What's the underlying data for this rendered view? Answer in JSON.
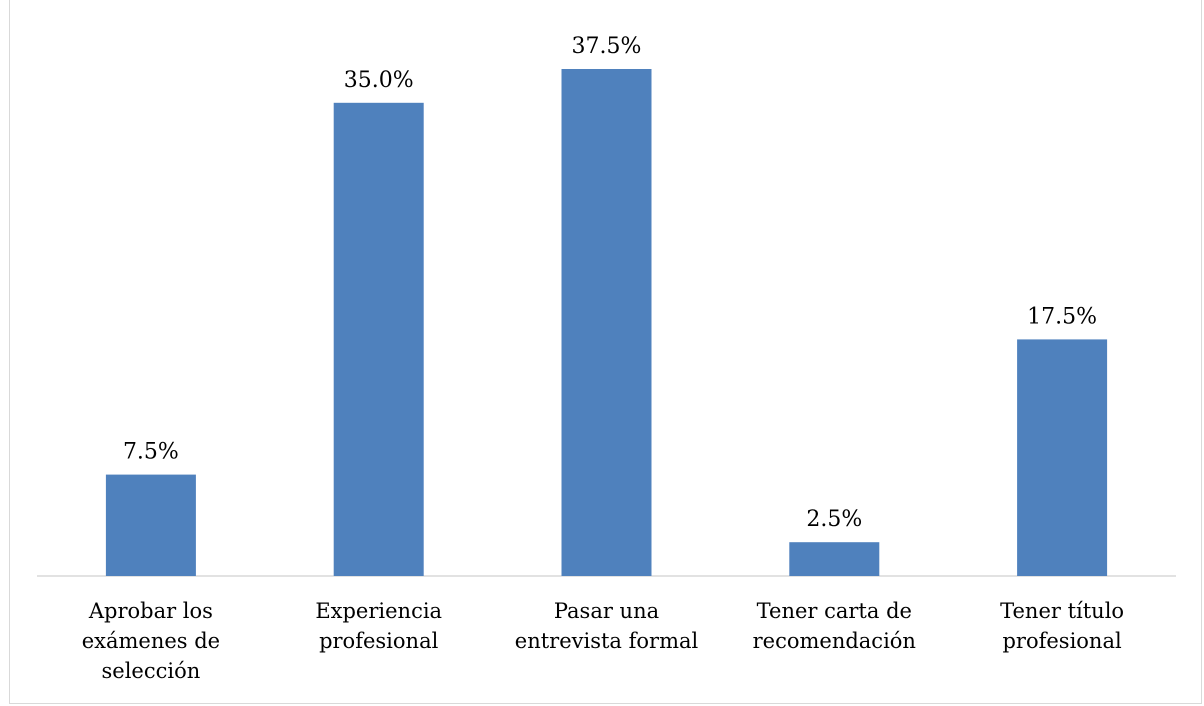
{
  "chart_data": {
    "type": "bar",
    "title": "",
    "xlabel": "",
    "ylabel": "",
    "categories": [
      "Aprobar los exámenes de selección",
      "Experiencia profesional",
      "Pasar una entrevista formal",
      "Tener carta de recomendación",
      "Tener título profesional"
    ],
    "category_lines": [
      [
        "Aprobar los",
        "exámenes de",
        "selección"
      ],
      [
        "Experiencia",
        "profesional"
      ],
      [
        "Pasar una",
        "entrevista formal"
      ],
      [
        "Tener carta de",
        "recomendación"
      ],
      [
        "Tener título",
        "profesional"
      ]
    ],
    "values": [
      7.5,
      35.0,
      37.5,
      2.5,
      17.5
    ],
    "data_labels": [
      "7.5%",
      "35.0%",
      "37.5%",
      "2.5%",
      "17.5%"
    ],
    "ylim": [
      0,
      37.5
    ],
    "unit": "%",
    "grid": false,
    "legend": "none",
    "bar_color": "#4f81bd",
    "axis_color": "#d9d9d9"
  }
}
